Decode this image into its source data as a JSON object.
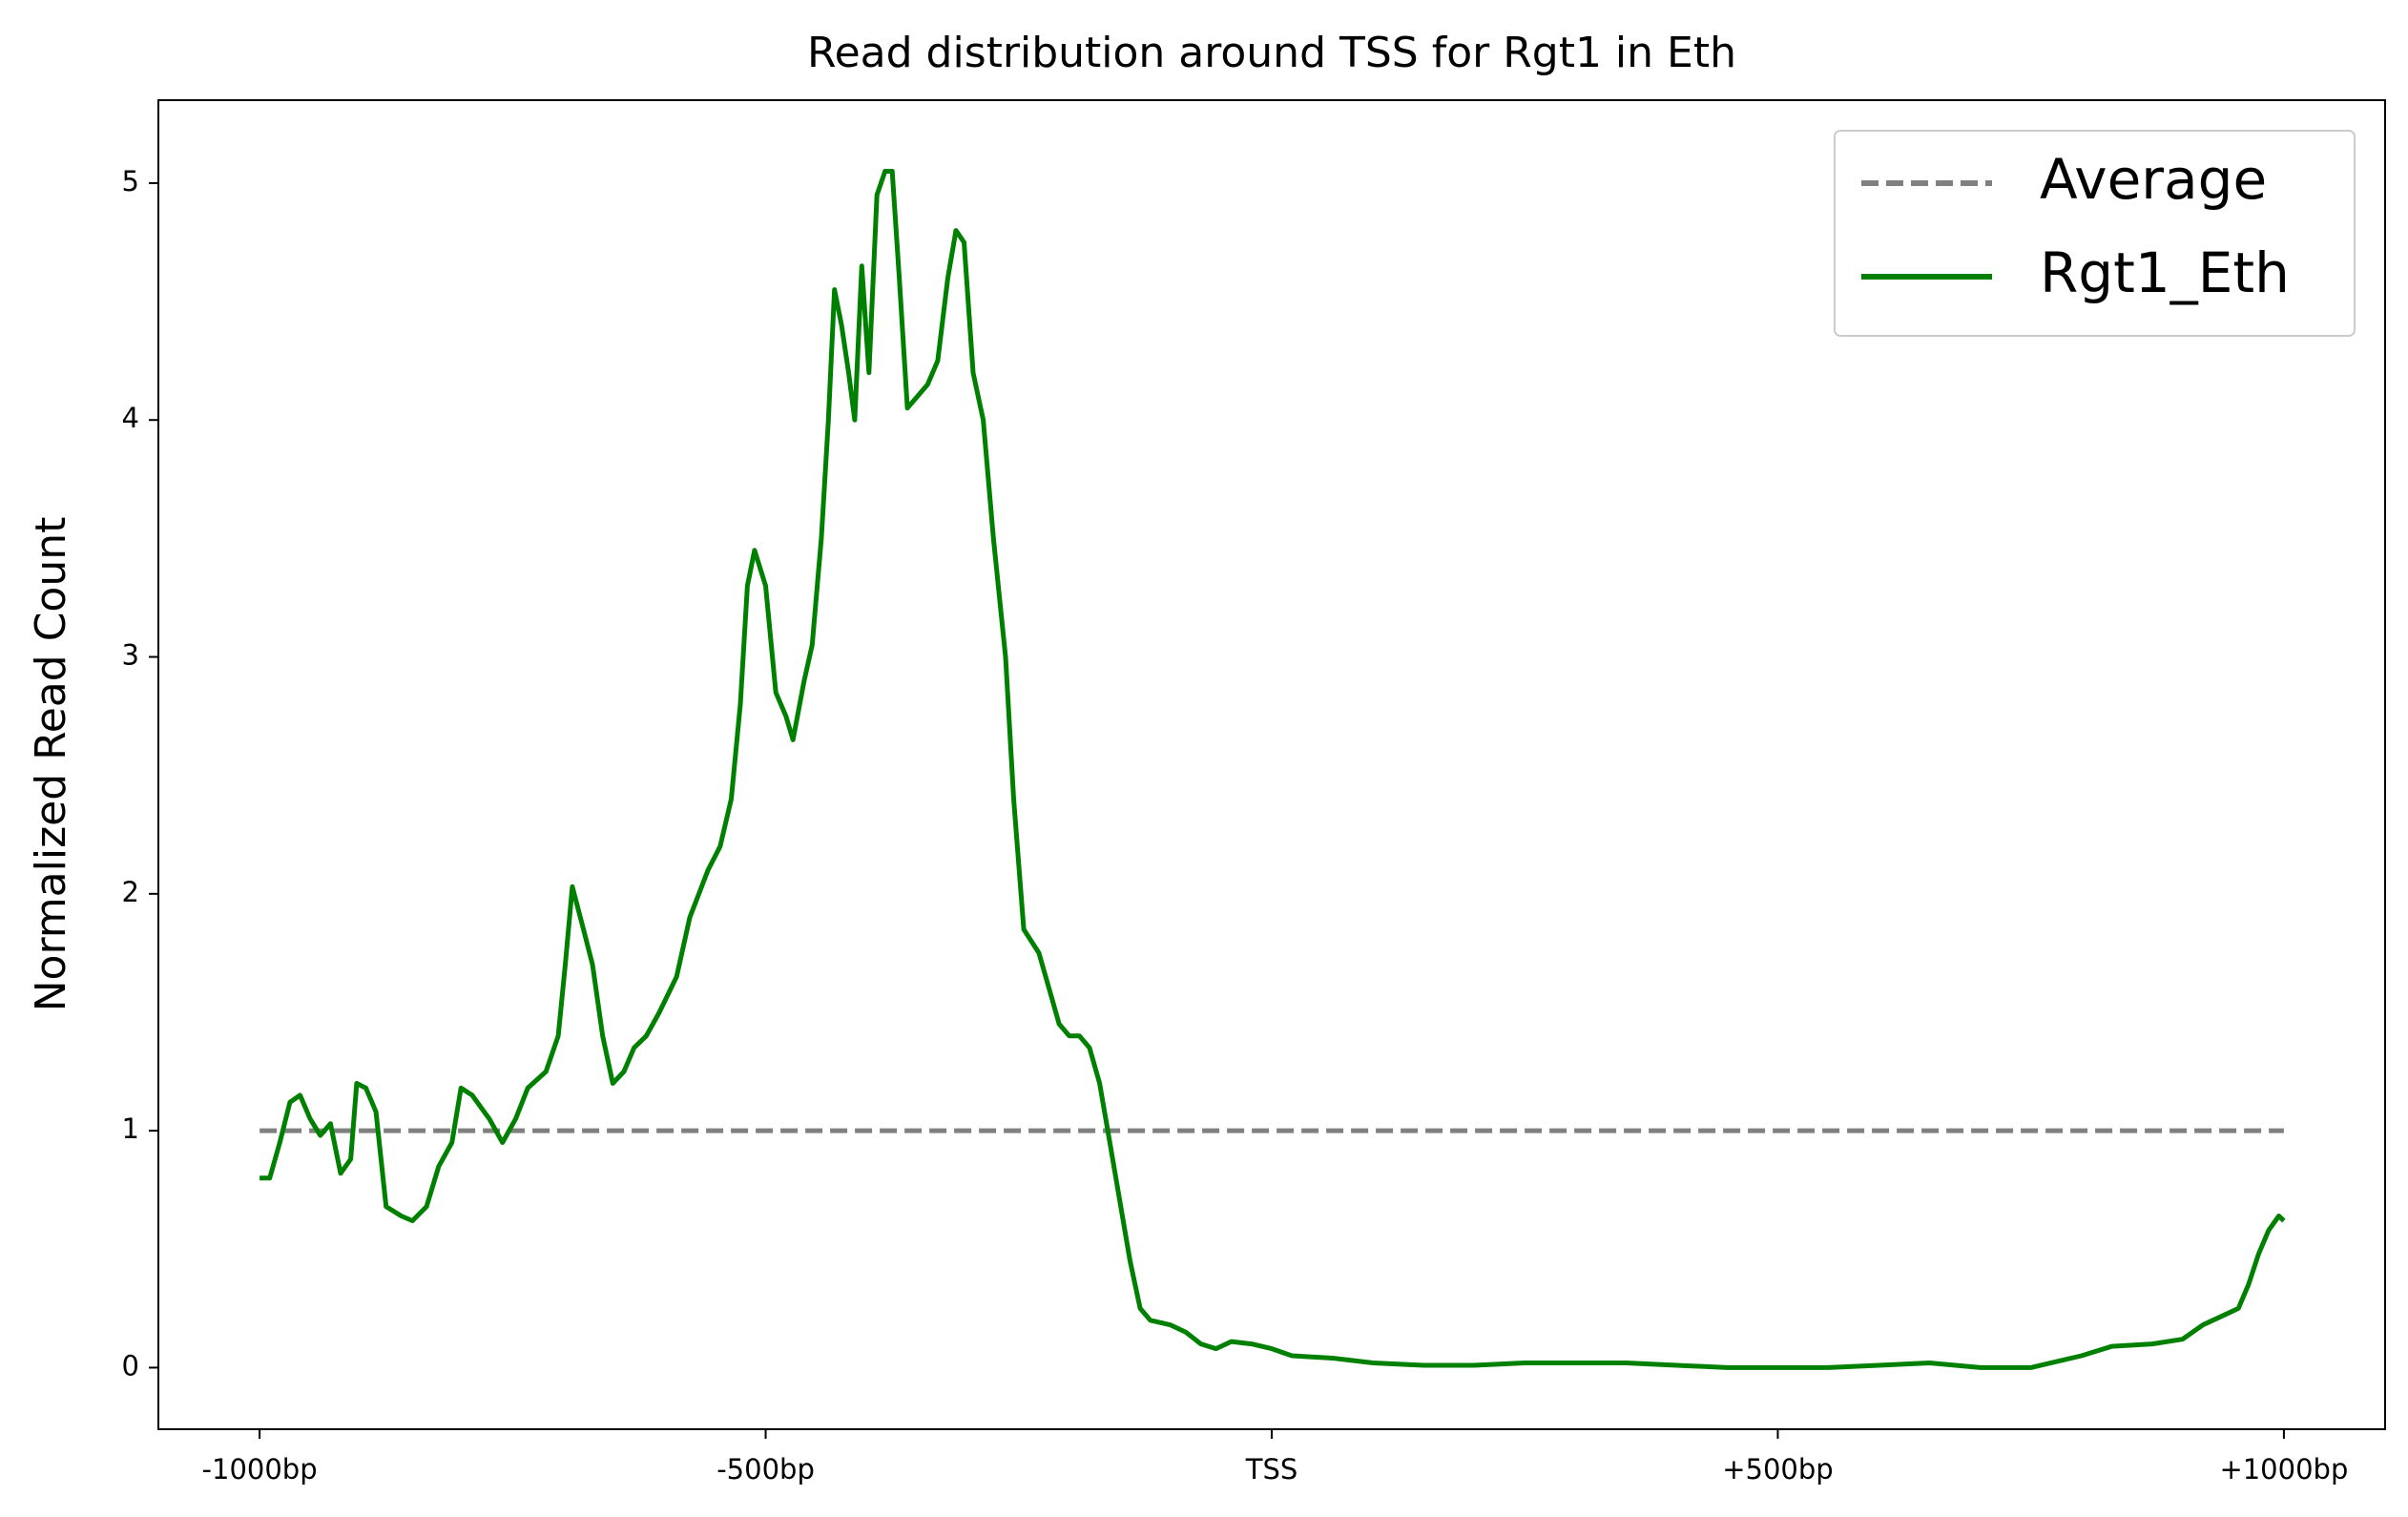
{
  "chart_data": {
    "type": "line",
    "title": "Read distribution around TSS for Rgt1 in Eth",
    "y_label": "Normalized Read Count",
    "xlim": [
      -1100,
      1100
    ],
    "ylim": [
      -0.26,
      5.35
    ],
    "xticks": [
      {
        "value": -1000,
        "label": "-1000bp"
      },
      {
        "value": -500,
        "label": "-500bp"
      },
      {
        "value": 0,
        "label": "TSS"
      },
      {
        "value": 500,
        "label": "+500bp"
      },
      {
        "value": 1000,
        "label": "+1000bp"
      }
    ],
    "yticks": [
      0,
      1,
      2,
      3,
      4,
      5
    ],
    "grid": false,
    "legend": "upper right",
    "series": [
      {
        "name": "Average",
        "color": "#808080",
        "dash": true,
        "x": [
          -1000,
          1000
        ],
        "values": [
          1,
          1
        ]
      },
      {
        "name": "Rgt1_Eth",
        "color": "#008000",
        "dash": false,
        "x": [
          -1000,
          -990,
          -980,
          -970,
          -960,
          -950,
          -940,
          -930,
          -920,
          -910,
          -904,
          -895,
          -885,
          -875,
          -860,
          -849,
          -835,
          -823,
          -810,
          -801,
          -790,
          -773,
          -760,
          -747,
          -735,
          -717,
          -705,
          -698,
          -691,
          -680,
          -671,
          -661,
          -651,
          -640,
          -630,
          -618,
          -605,
          -588,
          -575,
          -557,
          -545,
          -534,
          -525,
          -518,
          -511,
          -500,
          -490,
          -480,
          -473,
          -462,
          -454,
          -445,
          -438,
          -432,
          -425,
          -418,
          -412,
          -405,
          -398,
          -390,
          -382,
          -375,
          -368,
          -360,
          -350,
          -340,
          -330,
          -320,
          -312,
          -304,
          -295,
          -285,
          -275,
          -263,
          -255,
          -245,
          -230,
          -220,
          -210,
          -200,
          -190,
          -180,
          -170,
          -160,
          -150,
          -140,
          -130,
          -120,
          -100,
          -85,
          -70,
          -55,
          -40,
          -20,
          0,
          20,
          60,
          100,
          150,
          200,
          250,
          300,
          350,
          400,
          450,
          500,
          550,
          600,
          650,
          700,
          750,
          800,
          830,
          870,
          900,
          920,
          940,
          955,
          965,
          975,
          985,
          995,
          1000
        ],
        "values": [
          0.8,
          0.8,
          0.95,
          1.12,
          1.15,
          1.05,
          0.98,
          1.03,
          0.82,
          0.88,
          1.2,
          1.18,
          1.08,
          0.68,
          0.64,
          0.62,
          0.68,
          0.85,
          0.95,
          1.18,
          1.15,
          1.05,
          0.95,
          1.05,
          1.18,
          1.25,
          1.4,
          1.7,
          2.03,
          1.85,
          1.7,
          1.4,
          1.2,
          1.25,
          1.35,
          1.4,
          1.5,
          1.65,
          1.9,
          2.1,
          2.2,
          2.4,
          2.8,
          3.3,
          3.45,
          3.3,
          2.85,
          2.75,
          2.65,
          2.9,
          3.05,
          3.5,
          4.0,
          4.55,
          4.4,
          4.2,
          4.0,
          4.65,
          4.2,
          4.95,
          5.05,
          5.05,
          4.6,
          4.05,
          4.1,
          4.15,
          4.25,
          4.6,
          4.8,
          4.75,
          4.2,
          4.0,
          3.5,
          3.0,
          2.4,
          1.85,
          1.75,
          1.6,
          1.45,
          1.4,
          1.4,
          1.35,
          1.2,
          0.95,
          0.7,
          0.45,
          0.25,
          0.2,
          0.18,
          0.15,
          0.1,
          0.08,
          0.11,
          0.1,
          0.08,
          0.05,
          0.04,
          0.02,
          0.01,
          0.01,
          0.02,
          0.02,
          0.02,
          0.01,
          0.0,
          0.0,
          0.0,
          0.01,
          0.02,
          0.0,
          0.0,
          0.05,
          0.09,
          0.1,
          0.12,
          0.18,
          0.22,
          0.25,
          0.35,
          0.48,
          0.58,
          0.64,
          0.62
        ]
      }
    ]
  }
}
